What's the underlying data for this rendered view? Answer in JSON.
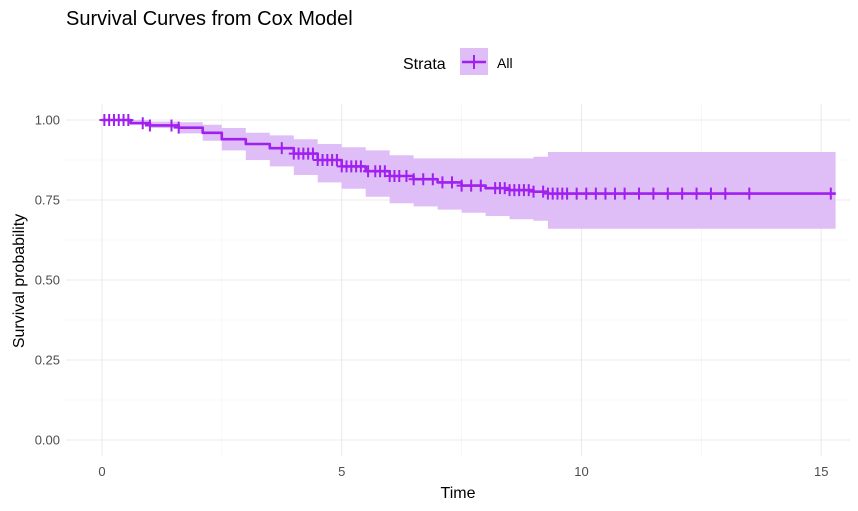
{
  "chart_data": {
    "type": "line",
    "title": "Survival Curves from Cox Model",
    "xlabel": "Time",
    "ylabel": "Survival probability",
    "legend": {
      "title": "Strata",
      "entries": [
        "All"
      ],
      "position": "top"
    },
    "xlim": [
      -0.75,
      15.6
    ],
    "ylim": [
      -0.05,
      1.05
    ],
    "x_ticks": [
      0,
      5,
      10,
      15
    ],
    "x_tick_labels": [
      "0",
      "5",
      "10",
      "15"
    ],
    "y_ticks": [
      0,
      0.25,
      0.5,
      0.75,
      1
    ],
    "y_tick_labels": [
      "0.00",
      "0.25",
      "0.50",
      "0.75",
      "1.00"
    ],
    "grid": true,
    "series": [
      {
        "name": "All",
        "color": "#a020f0",
        "ribbon_color": "#dfbdf7",
        "x": [
          0,
          0.6,
          1.0,
          1.6,
          2.1,
          2.5,
          3.0,
          3.5,
          4.0,
          4.5,
          5.0,
          5.5,
          6.0,
          6.5,
          7.0,
          7.5,
          8.0,
          8.5,
          9.0,
          9.3,
          10.0,
          12.0,
          15.3
        ],
        "y": [
          1.0,
          0.99,
          0.983,
          0.976,
          0.96,
          0.94,
          0.925,
          0.912,
          0.895,
          0.875,
          0.855,
          0.84,
          0.825,
          0.815,
          0.805,
          0.795,
          0.787,
          0.781,
          0.776,
          0.77,
          0.77,
          0.77,
          0.77
        ],
        "lower": [
          1.0,
          0.99,
          0.975,
          0.958,
          0.935,
          0.905,
          0.875,
          0.855,
          0.828,
          0.805,
          0.785,
          0.76,
          0.74,
          0.73,
          0.72,
          0.71,
          0.7,
          0.69,
          0.685,
          0.66,
          0.66,
          0.66,
          0.66
        ],
        "upper": [
          1.0,
          1.0,
          0.995,
          0.993,
          0.985,
          0.975,
          0.96,
          0.952,
          0.94,
          0.925,
          0.915,
          0.905,
          0.89,
          0.88,
          0.88,
          0.88,
          0.88,
          0.88,
          0.885,
          0.9,
          0.9,
          0.9,
          0.9
        ],
        "censor_x": [
          0.05,
          0.15,
          0.25,
          0.35,
          0.45,
          0.55,
          0.85,
          1.0,
          1.45,
          1.6,
          3.75,
          4.0,
          4.1,
          4.2,
          4.3,
          4.4,
          4.5,
          4.6,
          4.7,
          4.8,
          4.9,
          5.0,
          5.1,
          5.2,
          5.3,
          5.4,
          5.55,
          5.7,
          5.8,
          5.9,
          6.0,
          6.1,
          6.2,
          6.35,
          6.5,
          6.7,
          6.9,
          7.1,
          7.3,
          7.5,
          7.7,
          7.9,
          8.2,
          8.3,
          8.4,
          8.5,
          8.6,
          8.7,
          8.8,
          8.9,
          9.0,
          9.2,
          9.3,
          9.4,
          9.5,
          9.6,
          9.7,
          9.9,
          10.1,
          10.3,
          10.5,
          10.7,
          10.9,
          11.2,
          11.5,
          11.8,
          12.1,
          12.4,
          12.7,
          13.0,
          13.5,
          15.2
        ]
      }
    ]
  }
}
